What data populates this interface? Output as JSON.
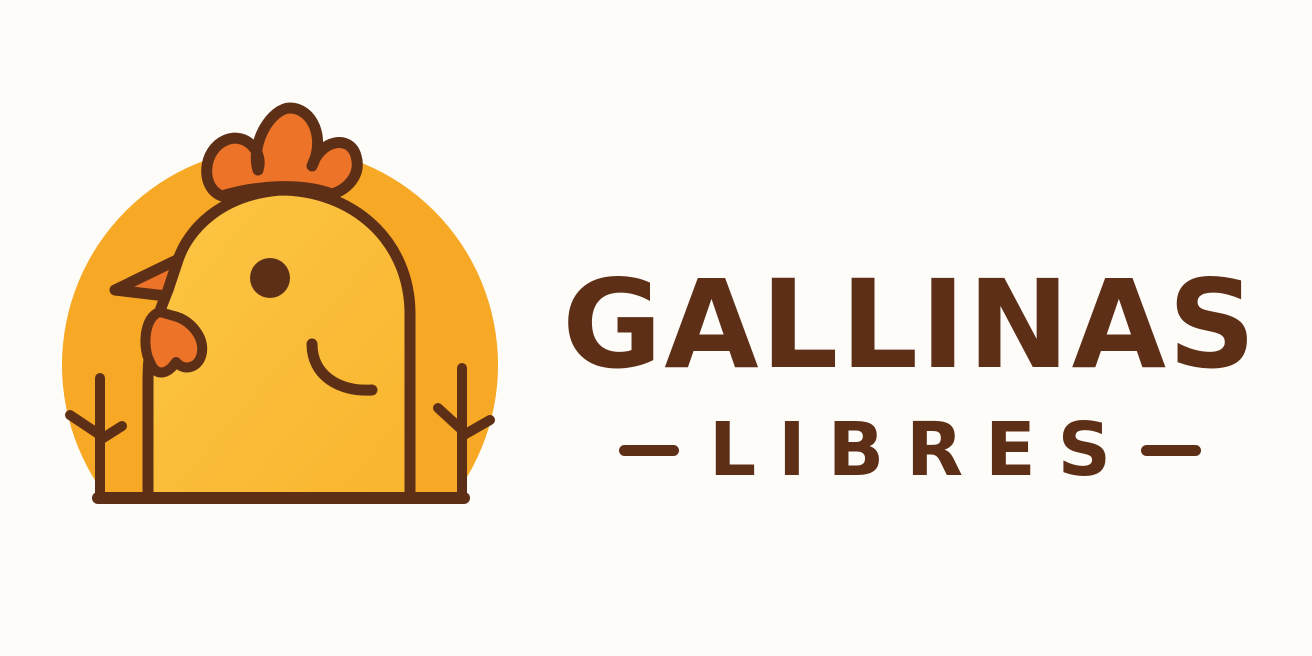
{
  "brand": {
    "name": "GALLINAS",
    "tagline": "LIBRES"
  },
  "colors": {
    "background": "#fdfcf9",
    "sun": "#f7a825",
    "body": "#fbbf3a",
    "comb": "#ec7327",
    "outline": "#5e2f17"
  },
  "icons": {
    "emblem": "hen-head-in-sun-icon"
  }
}
